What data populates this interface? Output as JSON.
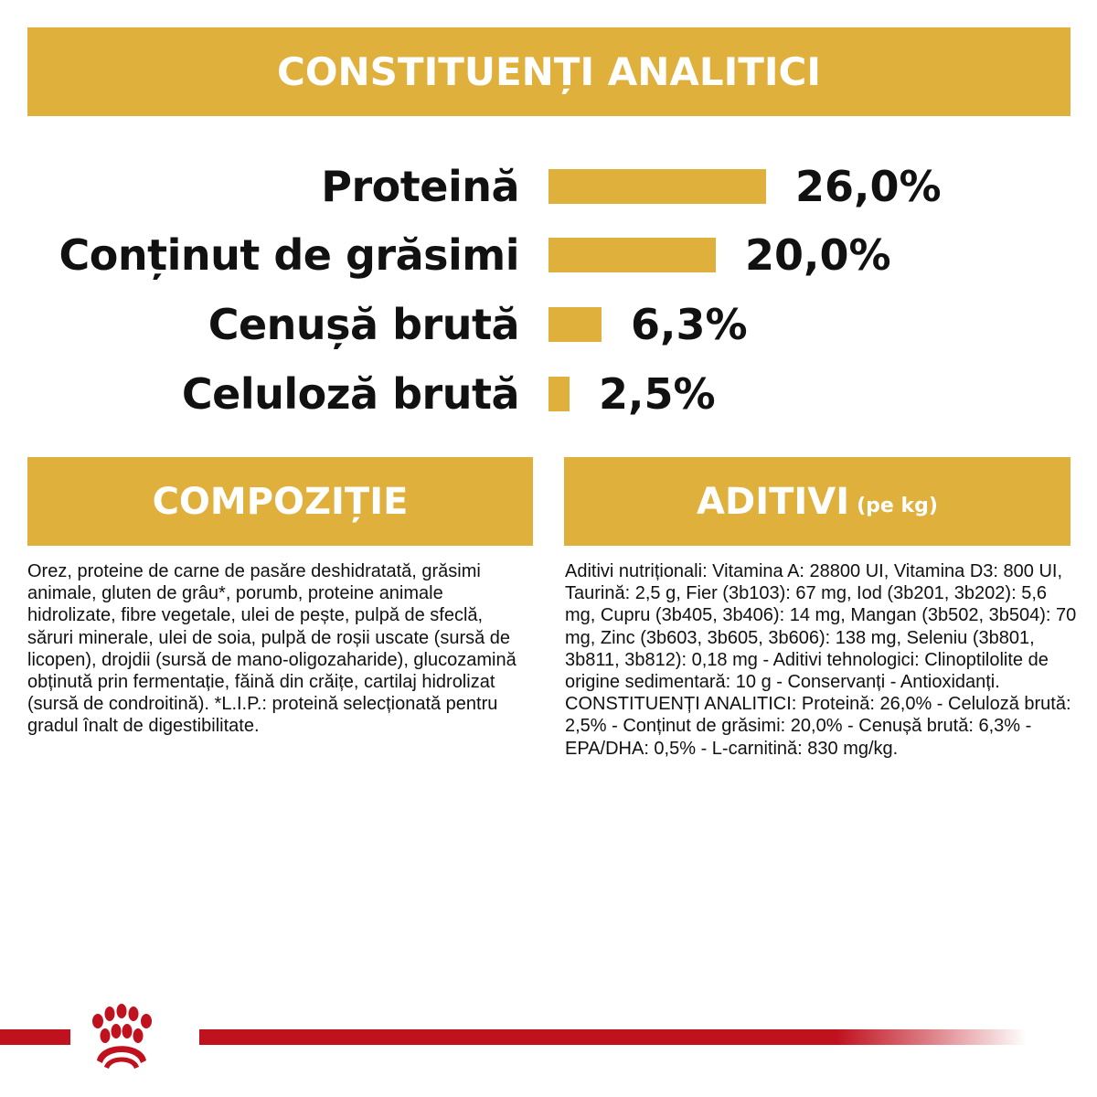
{
  "sections": {
    "analytics_title": "CONSTITUENȚI ANALITICI",
    "composition_title": "COMPOZIȚIE",
    "additives_title": "ADITIVI",
    "additives_subtitle": "(pe kg)"
  },
  "chart_data": {
    "type": "bar",
    "orientation": "horizontal",
    "title": "CONSTITUENȚI ANALITICI",
    "categories": [
      "Proteină",
      "Conținut de grăsimi",
      "Cenușă brută",
      "Celuloză brută"
    ],
    "values": [
      26.0,
      20.0,
      6.3,
      2.5
    ],
    "value_labels": [
      "26,0%",
      "20,0%",
      "6,3%",
      "2,5%"
    ],
    "unit": "%",
    "xlabel": "",
    "ylabel": "",
    "grid": false,
    "legend": null,
    "bar_color": "#e0b03c"
  },
  "rows": [
    {
      "label": "Proteină",
      "value": "26,0%",
      "pct": 26.0
    },
    {
      "label": "Conținut de grăsimi",
      "value": "20,0%",
      "pct": 20.0
    },
    {
      "label": "Cenușă brută",
      "value": "6,3%",
      "pct": 6.3
    },
    {
      "label": "Celuloză brută",
      "value": "2,5%",
      "pct": 2.5
    }
  ],
  "composition_text": "Orez, proteine de carne de pasăre deshidratată, grăsimi animale, gluten de grâu*, porumb, proteine animale hidrolizate, fibre vegetale, ulei de pește, pulpă de sfeclă, săruri minerale, ulei de soia, pulpă de roșii uscate (sursă de licopen), drojdii (sursă de mano-oligozaharide), glucozamină obținută prin fermentație, făină din crăițe, cartilaj hidrolizat (sursă de condroitină). *L.I.P.: proteină selecționată pentru gradul înalt de digestibilitate.",
  "additives_text": "Aditivi nutriționali: Vitamina A: 28800 UI, Vitamina D3: 800 UI, Taurină: 2,5 g, Fier (3b103): 67 mg, Iod (3b201, 3b202): 5,6 mg, Cupru (3b405, 3b406): 14 mg, Mangan (3b502, 3b504): 70 mg, Zinc (3b603, 3b605, 3b606): 138 mg, Seleniu (3b801, 3b811, 3b812): 0,18 mg - Aditivi tehnologici: Clinoptilolite de origine sedimentară: 10 g - Conservanți - Antioxidanți. CONSTITUENȚI ANALITICI: Proteină: 26,0% - Celuloză brută: 2,5% - Conținut de grăsimi: 20,0% - Cenușă brută: 6,3% - EPA/DHA: 0,5% - L-carnitină: 830 mg/kg.",
  "colors": {
    "accent": "#e0b03c",
    "brand_red": "#c0111e",
    "text": "#111111",
    "background": "#ffffff"
  },
  "footer": {
    "logo_icon": "crown-logo-icon"
  }
}
